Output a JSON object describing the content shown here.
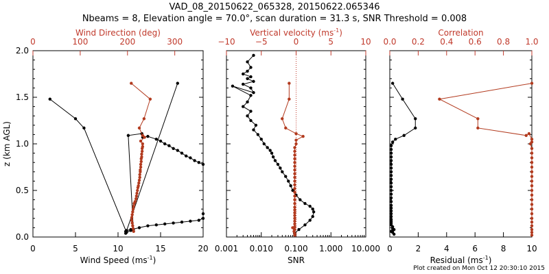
{
  "title_line1": "VAD_08_20150622_065328, 20150622.065346",
  "title_line2": "Nbeams = 8, Elevation angle = 70.0°, scan duration = 31.3 s, SNR Threshold = 0.008",
  "footer": "Plot created on Mon Oct 12 20:30:10 2015",
  "colors": {
    "black": "#000000",
    "red": "#b23a1e",
    "axis_top": "#c0392b"
  },
  "chart_data": [
    {
      "type": "line",
      "name": "wind-panel",
      "ylabel": "z (km AGL)",
      "yticks": [
        "0.0",
        "0.5",
        "1.0",
        "1.5",
        "2.0"
      ],
      "ylim": [
        0,
        2
      ],
      "bottom_axis": {
        "label": "Wind Speed (ms",
        "label_sup": "-1",
        "label_end": ")",
        "ticks": [
          "0",
          "5",
          "10",
          "15",
          "20"
        ],
        "range": [
          0,
          20
        ]
      },
      "top_axis": {
        "label": "Wind Direction (deg)",
        "ticks": [
          "0",
          "100",
          "200",
          "300"
        ],
        "range": [
          0,
          360
        ]
      },
      "series": [
        {
          "axis": "bottom",
          "color": "black",
          "x": [
            2,
            5,
            6,
            11,
            11.5,
            11.8,
            11.2,
            12.8,
            12.9,
            13.5,
            14.5,
            15,
            15.5,
            16,
            16.5,
            17,
            17.5,
            18,
            18.5,
            19,
            19.5,
            20,
            20,
            20,
            19.5,
            18.5,
            17.5,
            16.5,
            15.5,
            14.5,
            13.5,
            12.5,
            11.5,
            11,
            10.9,
            10.9,
            17
          ],
          "y": [
            1.48,
            1.27,
            1.17,
            0.05,
            0.07,
            0.08,
            1.09,
            1.11,
            1.07,
            1.08,
            1.05,
            1.03,
            1.0,
            0.98,
            0.95,
            0.93,
            0.9,
            0.87,
            0.85,
            0.82,
            0.8,
            0.78,
            0.25,
            0.2,
            0.18,
            0.17,
            0.16,
            0.15,
            0.14,
            0.13,
            0.12,
            0.1,
            0.08,
            0.07,
            0.06,
            0.04,
            1.65
          ]
        },
        {
          "axis": "top",
          "color": "red",
          "x": [
            208,
            248,
            235,
            225,
            232,
            236,
            228,
            232,
            232,
            231,
            231,
            230,
            230,
            229,
            229,
            228,
            228,
            227,
            227,
            226,
            226,
            225,
            224,
            223,
            222,
            221,
            220,
            219,
            218,
            216,
            214,
            213,
            212,
            211,
            210,
            209,
            209,
            210,
            211,
            212,
            213
          ],
          "y": [
            1.65,
            1.48,
            1.27,
            1.17,
            1.09,
            1.07,
            1.03,
            1.0,
            0.97,
            0.95,
            0.92,
            0.89,
            0.86,
            0.84,
            0.81,
            0.78,
            0.75,
            0.72,
            0.7,
            0.67,
            0.64,
            0.61,
            0.58,
            0.55,
            0.53,
            0.5,
            0.47,
            0.44,
            0.41,
            0.38,
            0.36,
            0.33,
            0.3,
            0.27,
            0.24,
            0.21,
            0.18,
            0.15,
            0.12,
            0.09,
            0.06
          ]
        }
      ]
    },
    {
      "type": "line",
      "name": "snr-panel",
      "bottom_axis": {
        "label": "SNR",
        "ticks": [
          "0.001",
          "0.010",
          "0.100",
          "1.000",
          "10.000"
        ],
        "range_log10": [
          -3,
          1
        ],
        "scale": "log"
      },
      "top_axis": {
        "label": "Vertical velocity (ms",
        "label_sup": "-1",
        "label_end": ")",
        "ticks": [
          "−10",
          "−5",
          "0",
          "5",
          "10"
        ],
        "range": [
          -10,
          10
        ]
      },
      "reference_line": {
        "axis": "top",
        "value": 0,
        "style": "dotted"
      },
      "series": [
        {
          "axis": "bottom",
          "color": "black",
          "x": [
            0.006,
            0.004,
            0.005,
            0.004,
            0.003,
            0.005,
            0.004,
            0.006,
            0.003,
            0.005,
            0.006,
            0.0015,
            0.005,
            0.004,
            0.003,
            0.005,
            0.004,
            0.005,
            0.007,
            0.006,
            0.008,
            0.01,
            0.012,
            0.015,
            0.018,
            0.02,
            0.022,
            0.025,
            0.03,
            0.035,
            0.04,
            0.05,
            0.06,
            0.07,
            0.08,
            0.1,
            0.13,
            0.18,
            0.25,
            0.3,
            0.32,
            0.3,
            0.25,
            0.18,
            0.12,
            0.09
          ],
          "y": [
            1.95,
            1.88,
            1.82,
            1.78,
            1.75,
            1.72,
            1.7,
            1.67,
            1.64,
            1.6,
            1.55,
            1.62,
            1.52,
            1.45,
            1.4,
            1.35,
            1.3,
            1.25,
            1.2,
            1.15,
            1.1,
            1.05,
            1.0,
            0.96,
            0.93,
            0.9,
            0.86,
            0.82,
            0.78,
            0.74,
            0.7,
            0.65,
            0.6,
            0.55,
            0.5,
            0.45,
            0.4,
            0.36,
            0.33,
            0.3,
            0.27,
            0.22,
            0.18,
            0.13,
            0.08,
            0.04
          ]
        },
        {
          "axis": "top",
          "color": "red",
          "x": [
            -1,
            -1,
            -2,
            -1.5,
            0,
            1,
            0,
            0,
            -0.2,
            -0.2,
            -0.2,
            -0.2,
            -0.2,
            -0.2,
            -0.2,
            -0.2,
            -0.2,
            -0.2,
            -0.2,
            -0.2,
            -0.2,
            -0.2,
            -0.2,
            -0.2,
            -0.2,
            -0.2,
            -0.2,
            -0.2,
            -0.2,
            -0.2,
            -0.2,
            -0.2,
            -0.2,
            -0.5,
            -0.3,
            -0.2,
            -0.2
          ],
          "y": [
            1.65,
            1.48,
            1.27,
            1.17,
            1.11,
            1.08,
            1.04,
            1.0,
            0.96,
            0.92,
            0.88,
            0.84,
            0.8,
            0.76,
            0.72,
            0.68,
            0.64,
            0.6,
            0.56,
            0.52,
            0.48,
            0.44,
            0.4,
            0.36,
            0.32,
            0.29,
            0.26,
            0.23,
            0.2,
            0.17,
            0.14,
            0.11,
            0.08,
            0.1,
            0.06,
            0.04,
            0.02
          ]
        }
      ]
    },
    {
      "type": "line",
      "name": "residual-panel",
      "bottom_axis": {
        "label": "Residual (ms",
        "label_sup": "-1",
        "label_end": ")",
        "ticks": [
          "0",
          "2",
          "4",
          "6",
          "8",
          "10"
        ],
        "range": [
          0,
          10
        ]
      },
      "top_axis": {
        "label": "Correlation",
        "ticks": [
          "0.0",
          "0.2",
          "0.4",
          "0.6",
          "0.8",
          "1.0"
        ],
        "range": [
          0,
          1
        ]
      },
      "series": [
        {
          "axis": "bottom",
          "color": "black",
          "x": [
            0.2,
            0.9,
            1.8,
            1.8,
            1.0,
            0.4,
            0.2,
            0.1,
            0.1,
            0.1,
            0.1,
            0.1,
            0.1,
            0.1,
            0.1,
            0.1,
            0.1,
            0.1,
            0.1,
            0.1,
            0.1,
            0.1,
            0.1,
            0.1,
            0.1,
            0.1,
            0.1,
            0.1,
            0.1,
            0.1,
            0.1,
            0.1,
            0.2,
            0.2,
            0.3,
            0.2,
            0.1,
            0.2,
            0.3
          ],
          "y": [
            1.65,
            1.48,
            1.27,
            1.17,
            1.09,
            1.05,
            1.02,
            0.98,
            0.94,
            0.9,
            0.86,
            0.82,
            0.78,
            0.74,
            0.7,
            0.66,
            0.62,
            0.58,
            0.54,
            0.5,
            0.46,
            0.42,
            0.38,
            0.34,
            0.31,
            0.28,
            0.25,
            0.22,
            0.19,
            0.17,
            0.15,
            0.13,
            0.11,
            0.09,
            0.08,
            0.07,
            0.06,
            0.05,
            0.03
          ]
        },
        {
          "axis": "top",
          "color": "red",
          "x": [
            1.0,
            0.35,
            0.62,
            0.62,
            0.96,
            0.98,
            1.0,
            1.0,
            0.99,
            1.0,
            1.0,
            1.0,
            1.0,
            1.0,
            1.0,
            1.0,
            1.0,
            1.0,
            1.0,
            1.0,
            1.0,
            1.0,
            1.0,
            1.0,
            1.0,
            1.0,
            1.0,
            1.0,
            1.0,
            1.0
          ],
          "y": [
            1.65,
            1.48,
            1.27,
            1.17,
            1.09,
            1.11,
            1.05,
            1.02,
            1.0,
            0.95,
            0.9,
            0.85,
            0.8,
            0.75,
            0.7,
            0.65,
            0.6,
            0.55,
            0.5,
            0.45,
            0.4,
            0.35,
            0.3,
            0.25,
            0.2,
            0.16,
            0.12,
            0.08,
            0.05,
            0.02
          ]
        }
      ]
    }
  ]
}
